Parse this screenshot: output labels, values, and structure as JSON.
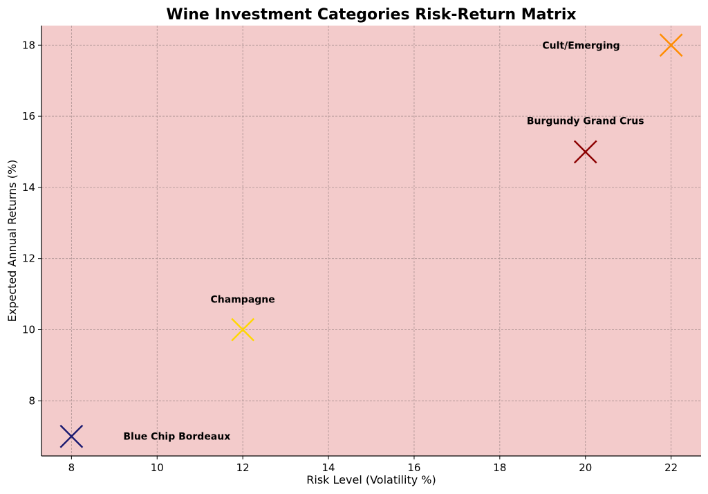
{
  "chart_data": {
    "type": "scatter",
    "title": "Wine Investment Categories Risk-Return Matrix",
    "xlabel": "Risk Level (Volatility %)",
    "ylabel": "Expected Annual Returns (%)",
    "xlim": [
      7.3,
      22.7
    ],
    "ylim": [
      6.45,
      18.55
    ],
    "xticks": [
      8,
      10,
      12,
      14,
      16,
      18,
      20,
      22
    ],
    "yticks": [
      8,
      10,
      12,
      14,
      16,
      18
    ],
    "grid": true,
    "background_color": "#f3cbcb",
    "marker": "x",
    "points": [
      {
        "label": "Blue Chip Bordeaux",
        "x": 8,
        "y": 7,
        "color": "#191970"
      },
      {
        "label": "Champagne",
        "x": 12,
        "y": 10,
        "color": "#ffd700"
      },
      {
        "label": "Burgundy Grand Crus",
        "x": 20,
        "y": 15,
        "color": "#8b0000"
      },
      {
        "label": "Cult/Emerging",
        "x": 22,
        "y": 18,
        "color": "#ff8c00"
      }
    ]
  }
}
